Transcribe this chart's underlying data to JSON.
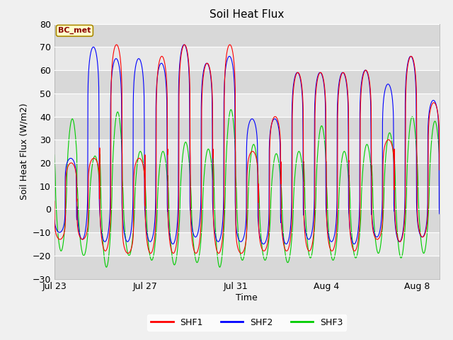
{
  "title": "Soil Heat Flux",
  "ylabel": "Soil Heat Flux (W/m2)",
  "xlabel": "Time",
  "annotation": "BC_met",
  "ylim": [
    -30,
    80
  ],
  "xlim_start": 0,
  "xlim_end": 17,
  "xtick_positions": [
    0,
    4,
    8,
    12,
    16
  ],
  "xtick_labels": [
    "Jul 23",
    "Jul 27",
    "Jul 31",
    "Aug 4",
    "Aug 8"
  ],
  "ytick_positions": [
    -30,
    -20,
    -10,
    0,
    10,
    20,
    30,
    40,
    50,
    60,
    70,
    80
  ],
  "colors": {
    "SHF1": "#ff0000",
    "SHF2": "#0000ff",
    "SHF3": "#00cc00"
  },
  "bg_color": "#f0f0f0",
  "plot_bg_light": "#e8e8e8",
  "plot_bg_dark": "#d8d8d8",
  "num_cycles": 17,
  "shf1_peaks": [
    20,
    22,
    71,
    22,
    66,
    71,
    63,
    71,
    25,
    40,
    59,
    59,
    59,
    60,
    30,
    66,
    46
  ],
  "shf2_peaks": [
    22,
    70,
    65,
    65,
    63,
    71,
    63,
    66,
    39,
    39,
    59,
    59,
    59,
    60,
    54,
    66,
    47
  ],
  "shf3_peaks": [
    39,
    23,
    42,
    25,
    25,
    29,
    26,
    43,
    28,
    24,
    25,
    36,
    25,
    28,
    33,
    40,
    38
  ],
  "shf1_troughs": [
    -13,
    -13,
    -18,
    -19,
    -19,
    -19,
    -19,
    -19,
    -19,
    -18,
    -18,
    -18,
    -18,
    -18,
    -13,
    -14,
    -12
  ],
  "shf2_troughs": [
    -10,
    -13,
    -14,
    -14,
    -14,
    -15,
    -12,
    -14,
    -14,
    -15,
    -15,
    -13,
    -14,
    -15,
    -12,
    -14,
    -12
  ],
  "shf3_troughs": [
    -18,
    -20,
    -25,
    -20,
    -22,
    -24,
    -23,
    -25,
    -22,
    -22,
    -23,
    -21,
    -22,
    -21,
    -19,
    -21,
    -19
  ]
}
